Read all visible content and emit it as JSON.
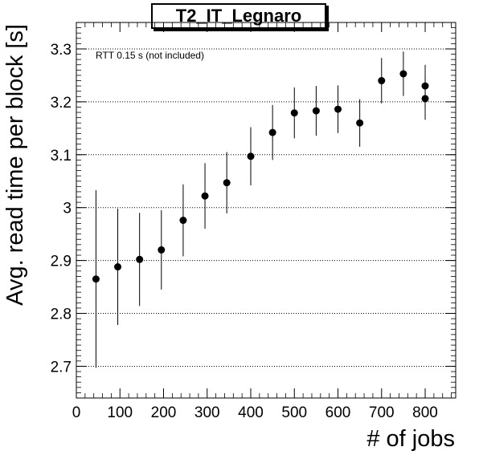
{
  "chart_data": {
    "type": "scatter",
    "title": "T2_IT_Legnaro",
    "xlabel": "# of jobs",
    "ylabel": "Avg. read time per block [s]",
    "annotation": "RTT 0.15 s (not included)",
    "xlim": [
      0,
      870
    ],
    "ylim": [
      2.64,
      3.35
    ],
    "xticks": [
      0,
      100,
      200,
      300,
      400,
      500,
      600,
      700,
      800
    ],
    "yticks": [
      2.7,
      2.8,
      2.9,
      3,
      3.1,
      3.2,
      3.3
    ],
    "ytick_labels": [
      "2.7",
      "2.8",
      "2.9",
      "3",
      "3.1",
      "3.2",
      "3.3"
    ],
    "grid": "horizontal dotted",
    "points": [
      {
        "x": 45,
        "y": 2.865,
        "err": 0.168
      },
      {
        "x": 95,
        "y": 2.888,
        "err": 0.11
      },
      {
        "x": 145,
        "y": 2.902,
        "err": 0.088
      },
      {
        "x": 195,
        "y": 2.92,
        "err": 0.075
      },
      {
        "x": 245,
        "y": 2.976,
        "err": 0.068
      },
      {
        "x": 295,
        "y": 3.022,
        "err": 0.062
      },
      {
        "x": 345,
        "y": 3.047,
        "err": 0.058
      },
      {
        "x": 400,
        "y": 3.097,
        "err": 0.055
      },
      {
        "x": 450,
        "y": 3.142,
        "err": 0.052
      },
      {
        "x": 500,
        "y": 3.179,
        "err": 0.048
      },
      {
        "x": 550,
        "y": 3.183,
        "err": 0.047
      },
      {
        "x": 600,
        "y": 3.186,
        "err": 0.045
      },
      {
        "x": 650,
        "y": 3.16,
        "err": 0.045
      },
      {
        "x": 700,
        "y": 3.24,
        "err": 0.043
      },
      {
        "x": 750,
        "y": 3.253,
        "err": 0.042
      },
      {
        "x": 800,
        "y": 3.23,
        "err": 0.04
      },
      {
        "x": 800,
        "y": 3.206,
        "err": 0.04
      }
    ]
  }
}
